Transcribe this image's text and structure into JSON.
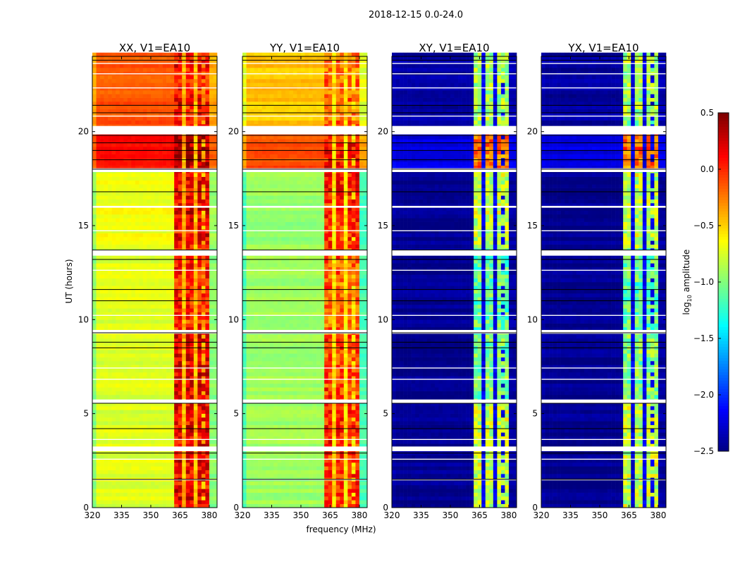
{
  "chart_data": {
    "type": "heatmap",
    "suptitle": "2018-12-15 0.0-24.0",
    "xlabel": "frequency (MHz)",
    "ylabel": "UT (hours)",
    "xlim": [
      320,
      384
    ],
    "ylim": [
      0,
      24
    ],
    "xticks": [
      "320",
      "335",
      "350",
      "365",
      "380"
    ],
    "yticks": [
      "0",
      "5",
      "10",
      "15",
      "20"
    ],
    "colorbar": {
      "label": "log10 amplitude",
      "label_main": "log",
      "label_sub": "10",
      "label_rest": " amplitude",
      "range": [
        -2.5,
        0.5
      ],
      "ticks": [
        "0.5",
        "0.0",
        "−0.5",
        "−1.0",
        "−1.5",
        "−2.0",
        "−2.5"
      ],
      "colormap": "jet"
    },
    "flagged_hours": [
      [
        1.45,
        1.5
      ],
      [
        2.55,
        2.6
      ],
      [
        3.0,
        3.25
      ],
      [
        3.6,
        3.65
      ],
      [
        5.55,
        5.75
      ],
      [
        6.8,
        6.85
      ],
      [
        7.4,
        7.45
      ],
      [
        9.25,
        9.45
      ],
      [
        10.2,
        10.25
      ],
      [
        12.6,
        12.65
      ],
      [
        13.4,
        13.7
      ],
      [
        14.7,
        14.75
      ],
      [
        15.95,
        16.05
      ],
      [
        17.85,
        18.05
      ],
      [
        19.85,
        20.3
      ],
      [
        20.8,
        20.85
      ],
      [
        22.3,
        22.35
      ],
      [
        23.05,
        23.1
      ],
      [
        23.6,
        23.65
      ]
    ],
    "black_lines_hours": [
      1.5,
      2.9,
      4.2,
      5.55,
      8.5,
      8.8,
      9.3,
      11.0,
      11.6,
      13.2,
      13.7,
      16.8,
      18.0,
      18.5,
      19.0,
      19.4,
      19.8,
      21.0,
      21.4,
      23.8
    ],
    "time_blocks_hours": [
      0,
      5.6,
      9.3,
      13.7,
      17.9,
      20,
      24
    ],
    "panels": [
      {
        "title": "XX, V1=EA10",
        "low": [
          -0.72,
          -0.72,
          -0.72,
          -0.66,
          0.1,
          -0.12
        ],
        "high": [
          0.15,
          0.2,
          0.0,
          0.15,
          0.35,
          0.1
        ],
        "stripe": -0.4
      },
      {
        "title": "YY, V1=EA10",
        "low": [
          -0.9,
          -0.9,
          -0.9,
          -0.92,
          -0.1,
          -0.45
        ],
        "high": [
          0.0,
          -0.05,
          -0.15,
          0.05,
          0.1,
          -0.2
        ],
        "stripe": -0.55
      },
      {
        "title": "XY, V1=EA10",
        "low": [
          -2.45,
          -2.45,
          -2.45,
          -2.45,
          -2.2,
          -2.4
        ],
        "high": [
          -0.8,
          -1.0,
          -1.1,
          -0.8,
          -0.2,
          -0.9
        ],
        "stripe": -2.2
      },
      {
        "title": "YX, V1=EA10",
        "low": [
          -2.45,
          -2.45,
          -2.45,
          -2.45,
          -2.2,
          -2.4
        ],
        "high": [
          -0.8,
          -1.0,
          -1.1,
          -0.8,
          -0.2,
          -0.9
        ],
        "stripe": -2.2
      }
    ]
  }
}
